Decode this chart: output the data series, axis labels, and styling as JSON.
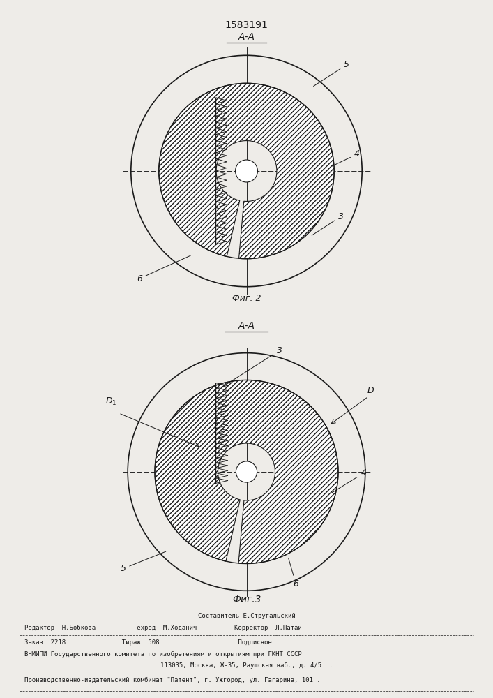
{
  "patent_number": "1583191",
  "bg_color": "#eeece8",
  "line_color": "#1a1a1a",
  "fig2_label": "Фиг. 2",
  "fig3_label": "Фиг.3",
  "footer_line0": "Составитель Е.Стругальский",
  "footer_line1": "Редактор  Н.Бобкова          Техред  М.Ходанич          Корректор  Л.Патай",
  "footer_line2": "Заказ  2218               Тираж  508                     Подписное",
  "footer_line3": "ВНИИПИ Государственного комитета по изобретениям и открытиям при ГКНТ СССР",
  "footer_line4": "113035, Москва, Ж-35, Раушская наб., д. 4/5  .",
  "footer_line5": "Производственно-издательский комбинат \"Патент\", г. Ужгород, ул. Гагарина, 101 ."
}
